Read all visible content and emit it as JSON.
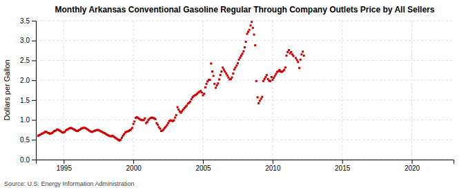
{
  "chart_data": {
    "type": "scatter",
    "title": "Monthly Arkansas Conventional Gasoline Regular Through Company Outlets Price by All Sellers",
    "y_label": "Dollars per Gallon",
    "annotations": [
      "Source: U.S. Energy Information Administration"
    ],
    "color": "#CC0000",
    "marker": "square",
    "grid": true,
    "xlim": [
      1993.0,
      2023.0
    ],
    "ylim": [
      0.0,
      3.5
    ],
    "xticks": [
      1995,
      2000,
      2005,
      2010,
      2015,
      2020
    ],
    "yticks": [
      {
        "value": 0.0,
        "label": "0.0"
      },
      0.5,
      {
        "value": 1.0,
        "label": "1.0"
      },
      1.5,
      {
        "value": 2.0,
        "label": "2.0"
      },
      2.5,
      {
        "value": 3.0,
        "label": "3.0"
      },
      3.5
    ],
    "x": [
      1993.17,
      1993.25,
      1993.33,
      1993.42,
      1993.5,
      1993.58,
      1993.67,
      1993.75,
      1993.83,
      1993.92,
      1994,
      1994.08,
      1994.17,
      1994.25,
      1994.33,
      1994.42,
      1994.5,
      1994.58,
      1994.67,
      1994.75,
      1994.83,
      1994.92,
      1995,
      1995.08,
      1995.17,
      1995.25,
      1995.33,
      1995.42,
      1995.5,
      1995.58,
      1995.67,
      1995.75,
      1995.83,
      1995.92,
      1996,
      1996.08,
      1996.17,
      1996.25,
      1996.33,
      1996.42,
      1996.5,
      1996.58,
      1996.67,
      1996.75,
      1996.83,
      1996.92,
      1997,
      1997.08,
      1997.17,
      1997.25,
      1997.33,
      1997.42,
      1997.5,
      1997.58,
      1997.67,
      1997.75,
      1997.83,
      1997.92,
      1998,
      1998.08,
      1998.17,
      1998.25,
      1998.33,
      1998.42,
      1998.5,
      1998.58,
      1998.67,
      1998.75,
      1998.83,
      1998.92,
      1999,
      1999.08,
      1999.17,
      1999.25,
      1999.33,
      1999.42,
      1999.5,
      1999.58,
      1999.67,
      1999.75,
      1999.83,
      1999.92,
      2000,
      2000.08,
      2000.17,
      2000.25,
      2000.33,
      2000.42,
      2000.5,
      2000.58,
      2000.67,
      2000.75,
      2000.83,
      2000.92,
      2001,
      2001.08,
      2001.17,
      2001.25,
      2001.33,
      2001.42,
      2001.5,
      2001.58,
      2001.67,
      2001.75,
      2001.83,
      2001.92,
      2002,
      2002.08,
      2002.17,
      2002.25,
      2002.33,
      2002.42,
      2002.5,
      2002.58,
      2002.67,
      2002.75,
      2002.83,
      2002.92,
      2003,
      2003.08,
      2003.17,
      2003.25,
      2003.33,
      2003.42,
      2003.5,
      2003.58,
      2003.67,
      2003.75,
      2003.83,
      2003.92,
      2004,
      2004.08,
      2004.17,
      2004.25,
      2004.33,
      2004.42,
      2004.5,
      2004.58,
      2004.67,
      2004.75,
      2004.83,
      2004.92,
      2005,
      2005.08,
      2005.17,
      2005.25,
      2005.33,
      2005.42,
      2005.5,
      2005.58,
      2005.67,
      2005.75,
      2005.83,
      2005.92,
      2006,
      2006.08,
      2006.17,
      2006.25,
      2006.33,
      2006.42,
      2006.5,
      2006.58,
      2006.67,
      2006.75,
      2006.83,
      2006.92,
      2007,
      2007.08,
      2007.17,
      2007.25,
      2007.33,
      2007.42,
      2007.5,
      2007.58,
      2007.67,
      2007.75,
      2007.83,
      2007.92,
      2008,
      2008.08,
      2008.17,
      2008.25,
      2008.33,
      2008.42,
      2008.5,
      2008.58,
      2008.67,
      2008.75,
      2008.83,
      2008.92,
      2009,
      2009.08,
      2009.17,
      2009.25,
      2009.33,
      2009.42,
      2009.5,
      2009.58,
      2009.67,
      2009.75,
      2009.83,
      2009.92,
      2010,
      2010.08,
      2010.17,
      2010.25,
      2010.33,
      2010.42,
      2010.5,
      2010.58,
      2010.67,
      2010.75,
      2010.83,
      2010.92,
      2011,
      2011.08,
      2011.17,
      2011.25,
      2011.33,
      2011.42,
      2011.5,
      2011.67,
      2011.75,
      2011.83,
      2011.92,
      2012,
      2012.08,
      2012.17,
      2012.25
    ],
    "values": [
      0.6,
      0.62,
      0.63,
      0.65,
      0.66,
      0.68,
      0.7,
      0.7,
      0.68,
      0.67,
      0.65,
      0.66,
      0.67,
      0.7,
      0.72,
      0.73,
      0.75,
      0.76,
      0.74,
      0.72,
      0.7,
      0.68,
      0.69,
      0.7,
      0.74,
      0.76,
      0.77,
      0.79,
      0.8,
      0.79,
      0.77,
      0.76,
      0.74,
      0.72,
      0.72,
      0.74,
      0.76,
      0.78,
      0.79,
      0.8,
      0.8,
      0.79,
      0.77,
      0.75,
      0.73,
      0.71,
      0.7,
      0.7,
      0.72,
      0.73,
      0.74,
      0.75,
      0.74,
      0.73,
      0.71,
      0.7,
      0.68,
      0.67,
      0.65,
      0.63,
      0.62,
      0.6,
      0.59,
      0.59,
      0.6,
      0.58,
      0.56,
      0.54,
      0.52,
      0.5,
      0.48,
      0.5,
      0.55,
      0.6,
      0.64,
      0.68,
      0.7,
      0.71,
      0.72,
      0.74,
      0.76,
      0.8,
      0.9,
      0.96,
      1.05,
      1.07,
      1.05,
      1.03,
      1.01,
      1.0,
      0.99,
      1.0,
      1.04,
      0.92,
      0.95,
      1.0,
      1.03,
      1.05,
      1.06,
      1.05,
      1.04,
      1.02,
      0.92,
      0.88,
      0.82,
      0.78,
      0.72,
      0.73,
      0.76,
      0.8,
      0.83,
      0.87,
      0.92,
      0.97,
      0.99,
      0.98,
      0.97,
      0.99,
      1.06,
      1.12,
      1.32,
      1.26,
      1.21,
      1.18,
      1.22,
      1.26,
      1.3,
      1.33,
      1.36,
      1.41,
      1.43,
      1.46,
      1.52,
      1.57,
      1.6,
      1.62,
      1.63,
      1.66,
      1.69,
      1.71,
      1.73,
      1.69,
      1.62,
      1.66,
      1.82,
      1.91,
      1.97,
      2.01,
      2.01,
      2.42,
      2.22,
      2.11,
      1.91,
      1.81,
      1.87,
      1.92,
      2.02,
      2.13,
      2.22,
      2.32,
      2.27,
      2.22,
      2.17,
      2.12,
      2.07,
      2.02,
      2.03,
      2.07,
      2.17,
      2.27,
      2.32,
      2.37,
      2.43,
      2.52,
      2.57,
      2.62,
      2.67,
      2.73,
      2.83,
      2.97,
      3.17,
      3.22,
      3.27,
      3.38,
      3.47,
      3.32,
      3.15,
      2.88,
      1.98,
      1.57,
      1.42,
      1.48,
      1.53,
      1.58,
      1.98,
      2.03,
      2.08,
      2.13,
      2.03,
      1.99,
      1.98,
      2.08,
      2.01,
      2.06,
      2.11,
      2.16,
      2.21,
      2.23,
      2.26,
      2.22,
      2.21,
      2.23,
      2.26,
      2.32,
      2.62,
      2.71,
      2.76,
      2.68,
      2.71,
      2.65,
      2.61,
      2.56,
      2.51,
      2.46,
      2.31,
      2.52,
      2.65,
      2.72,
      2.62
    ]
  }
}
